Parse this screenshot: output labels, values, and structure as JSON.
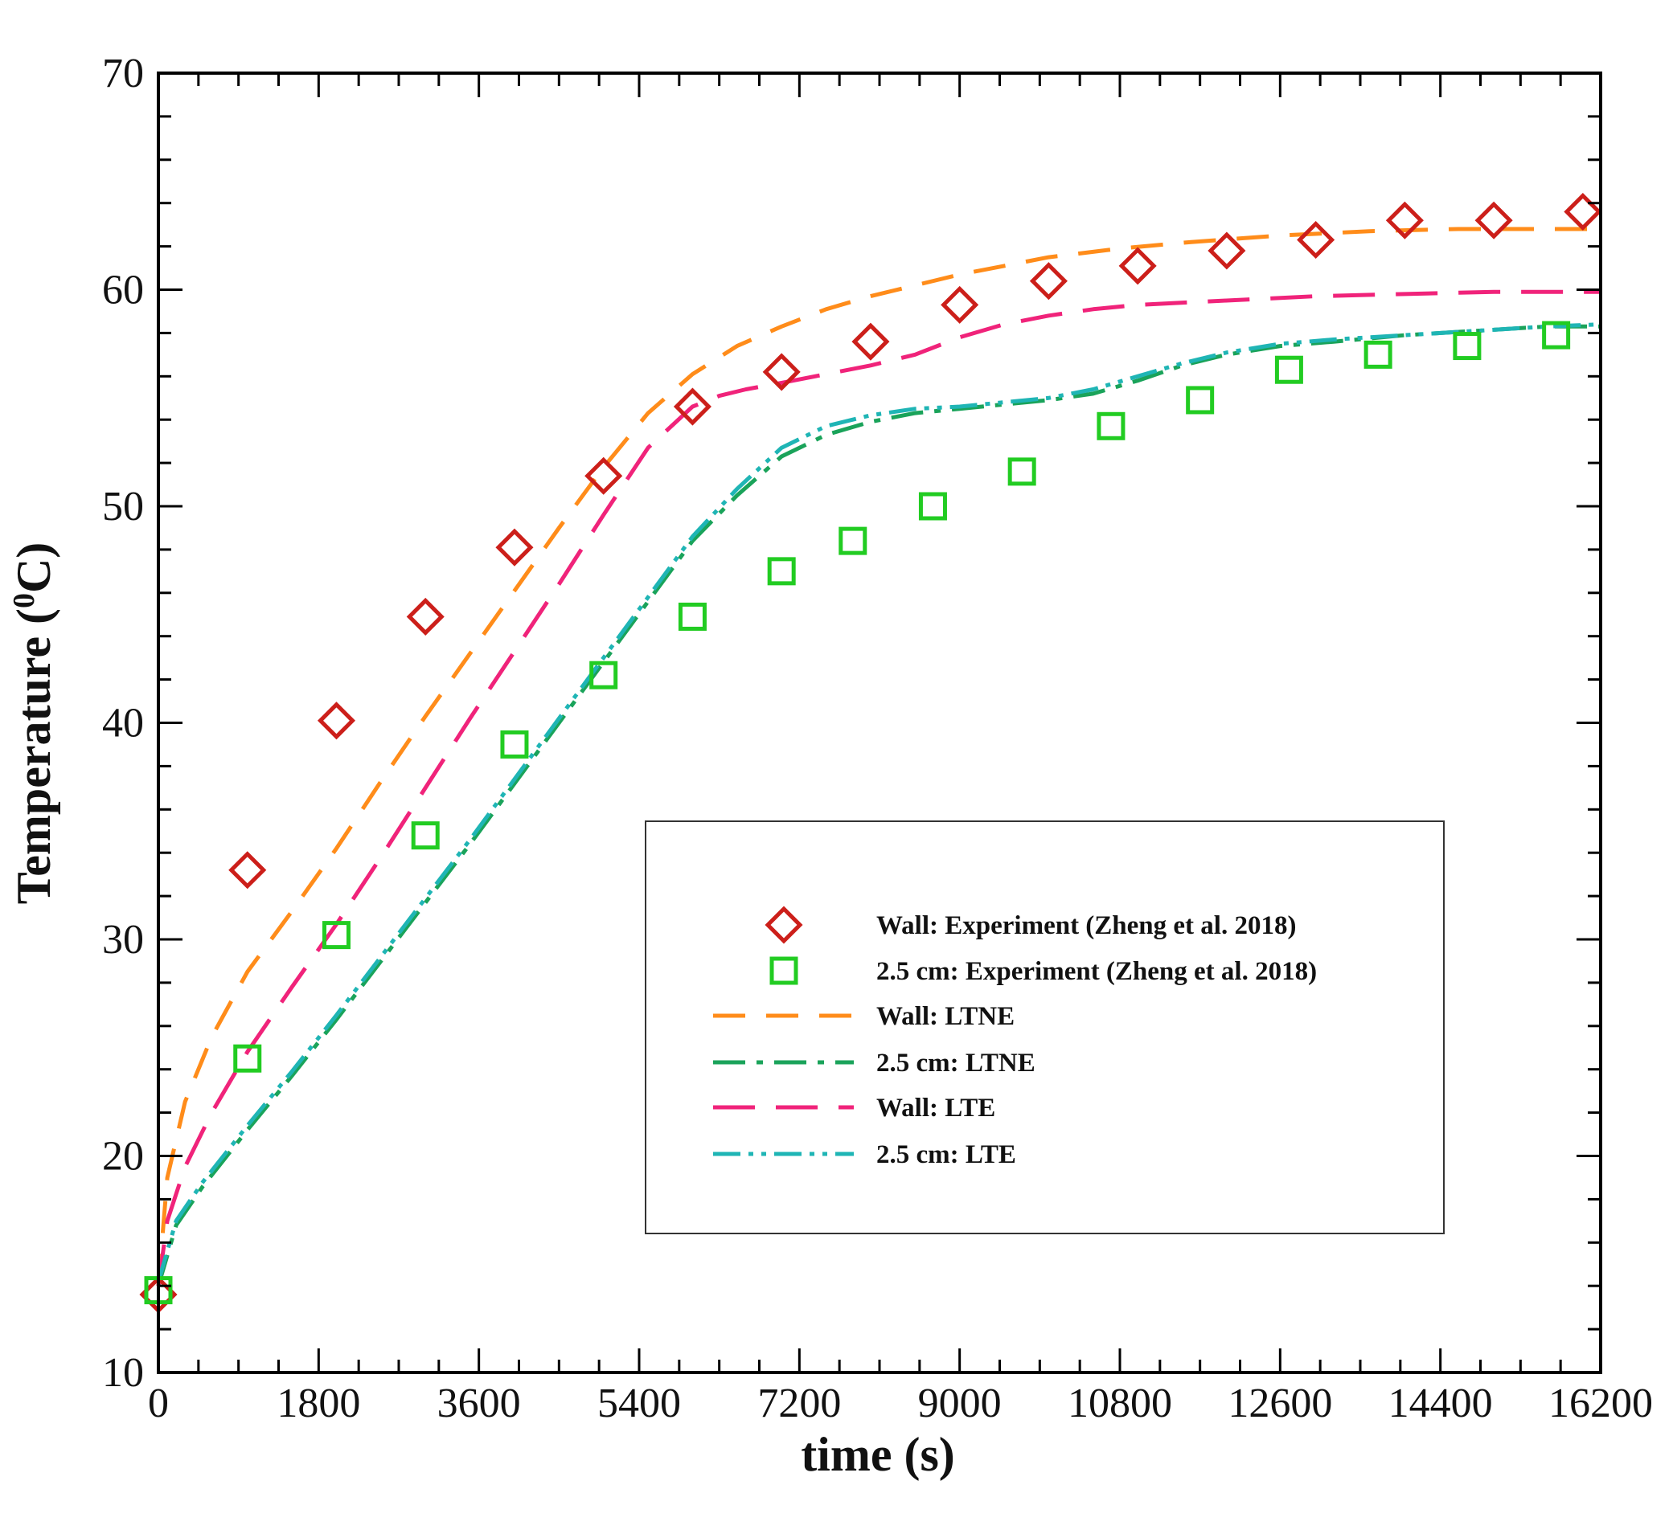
{
  "chart_data": {
    "type": "line",
    "title": "",
    "xlabel": "time (s)",
    "ylabel_main": "Temperature (",
    "ylabel_sup": "0",
    "ylabel_end": "C)",
    "xlim": [
      0,
      16200
    ],
    "ylim": [
      10,
      70
    ],
    "xticks": [
      0,
      1800,
      3600,
      5400,
      7200,
      9000,
      10800,
      12600,
      14400,
      16200
    ],
    "xtick_labels": [
      "0",
      "1800",
      "3600",
      "5400",
      "7200",
      "9000",
      "10800",
      "12600",
      "14400",
      "16200"
    ],
    "yticks": [
      10,
      20,
      30,
      40,
      50,
      60,
      70
    ],
    "ytick_labels": [
      "10",
      "20",
      "30",
      "40",
      "50",
      "60",
      "70"
    ],
    "grid": false,
    "legend_position": "center-right",
    "series": [
      {
        "name": "Wall: Experiment (Zheng et al. 2018)",
        "style": "markers",
        "marker": "diamond",
        "color": "#cc1f1a",
        "x": [
          0,
          1000,
          2000,
          3000,
          4000,
          5000,
          6000,
          7000,
          8000,
          9000,
          10000,
          11000,
          12000,
          13000,
          14000,
          15000,
          16000
        ],
        "y": [
          13.6,
          33.2,
          40.1,
          44.9,
          48.1,
          51.4,
          54.6,
          56.2,
          57.6,
          59.3,
          60.4,
          61.1,
          61.8,
          62.3,
          63.2,
          63.2,
          63.6
        ]
      },
      {
        "name": "2.5 cm: Experiment (Zheng et al. 2018)",
        "style": "markers",
        "marker": "square",
        "color": "#22cc22",
        "x": [
          0,
          1000,
          2000,
          3000,
          4000,
          5000,
          6000,
          7000,
          7800,
          8700,
          9700,
          10700,
          11700,
          12700,
          13700,
          14700,
          15700
        ],
        "y": [
          13.8,
          24.5,
          30.2,
          34.8,
          39.0,
          42.2,
          44.9,
          47.0,
          48.4,
          50.0,
          51.6,
          53.7,
          54.9,
          56.3,
          57.0,
          57.4,
          57.9
        ]
      },
      {
        "name": "Wall: LTNE",
        "style": "dash",
        "color": "#ff8c1a",
        "x": [
          0,
          100,
          300,
          600,
          1000,
          1500,
          2000,
          2500,
          3000,
          3500,
          4000,
          4500,
          5000,
          5500,
          6000,
          6500,
          7000,
          7500,
          8000,
          8500,
          9000,
          9500,
          10000,
          10800,
          11600,
          12600,
          13600,
          14600,
          15600,
          16200
        ],
        "y": [
          14,
          19,
          22.5,
          25.5,
          28.5,
          31.3,
          34.2,
          37.3,
          40.3,
          43.2,
          46.1,
          49,
          51.8,
          54.3,
          56.1,
          57.4,
          58.3,
          59.1,
          59.7,
          60.2,
          60.7,
          61.1,
          61.5,
          61.9,
          62.2,
          62.5,
          62.7,
          62.8,
          62.8,
          62.8
        ]
      },
      {
        "name": "2.5 cm: LTNE",
        "style": "dashdot",
        "color": "#1aa35a",
        "x": [
          0,
          200,
          500,
          1000,
          1500,
          2000,
          2500,
          3000,
          3500,
          4000,
          4500,
          5000,
          5500,
          6000,
          6500,
          7000,
          7500,
          8000,
          8500,
          9000,
          9500,
          10000,
          10500,
          11000,
          11500,
          12000,
          12600,
          13200,
          14000,
          14800,
          15600,
          16200
        ],
        "y": [
          14,
          16.8,
          18.6,
          21.2,
          23.7,
          26.3,
          29,
          31.7,
          34.4,
          37.2,
          40,
          42.8,
          45.6,
          48.4,
          50.5,
          52.3,
          53.3,
          53.9,
          54.3,
          54.5,
          54.7,
          54.9,
          55.2,
          55.8,
          56.5,
          57,
          57.4,
          57.6,
          57.9,
          58.1,
          58.3,
          58.3
        ]
      },
      {
        "name": "Wall: LTE",
        "style": "longdash",
        "color": "#f0237a",
        "x": [
          0,
          100,
          300,
          600,
          1000,
          1500,
          2000,
          2500,
          3000,
          3500,
          4000,
          4500,
          5000,
          5500,
          6000,
          6300,
          6600,
          7000,
          7500,
          8000,
          8500,
          9000,
          9500,
          10000,
          10500,
          11000,
          12000,
          13000,
          14000,
          15000,
          16000,
          16200
        ],
        "y": [
          14,
          17,
          19.5,
          22,
          24.8,
          27.8,
          30.7,
          33.8,
          37,
          40.2,
          43.3,
          46.4,
          49.6,
          52.7,
          54.6,
          55.1,
          55.4,
          55.7,
          56.1,
          56.5,
          57,
          57.8,
          58.4,
          58.8,
          59.1,
          59.3,
          59.5,
          59.7,
          59.8,
          59.9,
          59.9,
          59.9
        ]
      },
      {
        "name": "2.5 cm: LTE",
        "style": "dashdotdot",
        "color": "#1fb5b5",
        "x": [
          0,
          200,
          500,
          1000,
          1500,
          2000,
          2500,
          3000,
          3500,
          4000,
          4500,
          5000,
          5500,
          6000,
          6500,
          7000,
          7500,
          8000,
          8500,
          9000,
          9500,
          10000,
          10500,
          11000,
          11500,
          12000,
          12600,
          13200,
          14000,
          14800,
          15600,
          16200
        ],
        "y": [
          14.2,
          17,
          18.8,
          21.4,
          23.9,
          26.5,
          29.2,
          31.9,
          34.6,
          37.4,
          40.2,
          43,
          45.8,
          48.6,
          50.8,
          52.7,
          53.7,
          54.2,
          54.5,
          54.6,
          54.8,
          55,
          55.4,
          56,
          56.6,
          57.1,
          57.5,
          57.7,
          57.9,
          58.1,
          58.3,
          58.4
        ]
      }
    ]
  }
}
